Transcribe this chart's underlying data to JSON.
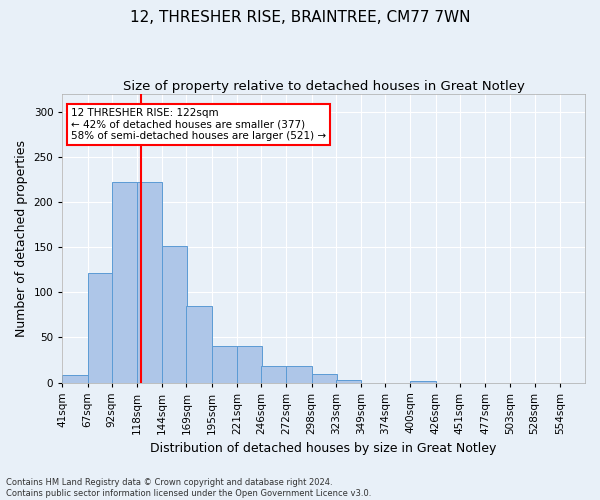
{
  "title": "12, THRESHER RISE, BRAINTREE, CM77 7WN",
  "subtitle": "Size of property relative to detached houses in Great Notley",
  "xlabel": "Distribution of detached houses by size in Great Notley",
  "ylabel": "Number of detached properties",
  "bin_labels": [
    "41sqm",
    "67sqm",
    "92sqm",
    "118sqm",
    "144sqm",
    "169sqm",
    "195sqm",
    "221sqm",
    "246sqm",
    "272sqm",
    "298sqm",
    "323sqm",
    "349sqm",
    "374sqm",
    "400sqm",
    "426sqm",
    "451sqm",
    "477sqm",
    "503sqm",
    "528sqm",
    "554sqm"
  ],
  "bin_edges": [
    41,
    67,
    92,
    118,
    144,
    169,
    195,
    221,
    246,
    272,
    298,
    323,
    349,
    374,
    400,
    426,
    451,
    477,
    503,
    528,
    554
  ],
  "bar_heights": [
    8,
    122,
    222,
    222,
    152,
    85,
    40,
    40,
    18,
    18,
    9,
    3,
    0,
    0,
    2,
    0,
    0,
    0,
    0,
    0
  ],
  "bar_color": "#aec6e8",
  "bar_edgecolor": "#5b9bd5",
  "vline_x": 122,
  "vline_color": "red",
  "annotation_text": "12 THRESHER RISE: 122sqm\n← 42% of detached houses are smaller (377)\n58% of semi-detached houses are larger (521) →",
  "annotation_box_color": "white",
  "annotation_box_edgecolor": "red",
  "ylim": [
    0,
    320
  ],
  "yticks": [
    0,
    50,
    100,
    150,
    200,
    250,
    300
  ],
  "footnote1": "Contains HM Land Registry data © Crown copyright and database right 2024.",
  "footnote2": "Contains public sector information licensed under the Open Government Licence v3.0.",
  "background_color": "#e8f0f8",
  "title_fontsize": 11,
  "subtitle_fontsize": 9.5,
  "tick_fontsize": 7.5,
  "ylabel_fontsize": 9,
  "xlabel_fontsize": 9,
  "footnote_fontsize": 6
}
